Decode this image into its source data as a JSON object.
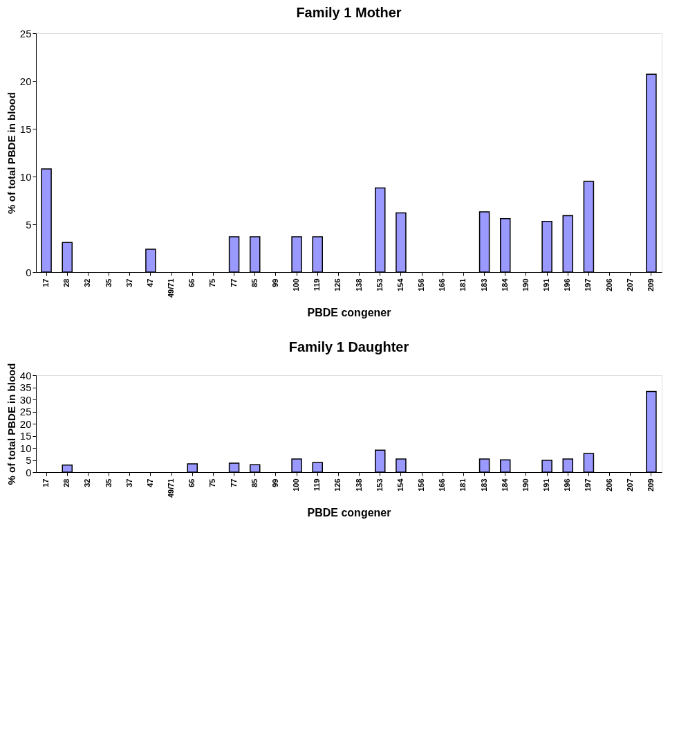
{
  "chart_data": [
    {
      "type": "bar",
      "title": "Family 1 Mother",
      "xlabel": "PBDE congener",
      "ylabel": "% of total PBDE in blood",
      "categories": [
        "17",
        "28",
        "32",
        "35",
        "37",
        "47",
        "49/71",
        "66",
        "75",
        "77",
        "85",
        "99",
        "100",
        "119",
        "126",
        "138",
        "153",
        "154",
        "156",
        "166",
        "181",
        "183",
        "184",
        "190",
        "191",
        "196",
        "197",
        "206",
        "207",
        "209"
      ],
      "series": [
        {
          "color": "#9999ff",
          "values": [
            10.8,
            3.1,
            null,
            null,
            null,
            2.4,
            null,
            null,
            null,
            3.7,
            3.7,
            null,
            3.7,
            3.7,
            null,
            null,
            8.8,
            6.2,
            null,
            null,
            null,
            6.3,
            5.6,
            null,
            5.3,
            5.9,
            9.5,
            null,
            null,
            20.7
          ]
        }
      ],
      "ylim": [
        0,
        25
      ],
      "yticks": [
        0,
        5,
        10,
        15,
        20,
        25
      ],
      "grid": false
    },
    {
      "type": "bar",
      "title": "Family 1 Daughter",
      "xlabel": "PBDE congener",
      "ylabel": "% of total PBDE in blood",
      "categories": [
        "17",
        "28",
        "32",
        "35",
        "37",
        "47",
        "49/71",
        "66",
        "75",
        "77",
        "85",
        "99",
        "100",
        "119",
        "126",
        "138",
        "153",
        "154",
        "156",
        "166",
        "181",
        "183",
        "184",
        "190",
        "191",
        "196",
        "197",
        "206",
        "207",
        "209"
      ],
      "series": [
        {
          "color": "#9999ff",
          "values": [
            null,
            2.9,
            null,
            null,
            null,
            null,
            null,
            3.4,
            null,
            3.7,
            3.1,
            null,
            5.4,
            4.0,
            null,
            null,
            9.1,
            5.4,
            null,
            null,
            null,
            5.4,
            5.1,
            null,
            4.9,
            5.4,
            7.7,
            null,
            null,
            33.3
          ]
        }
      ],
      "ylim": [
        0,
        40
      ],
      "yticks": [
        0,
        5,
        10,
        15,
        20,
        25,
        30,
        35,
        40
      ],
      "grid": false
    }
  ]
}
